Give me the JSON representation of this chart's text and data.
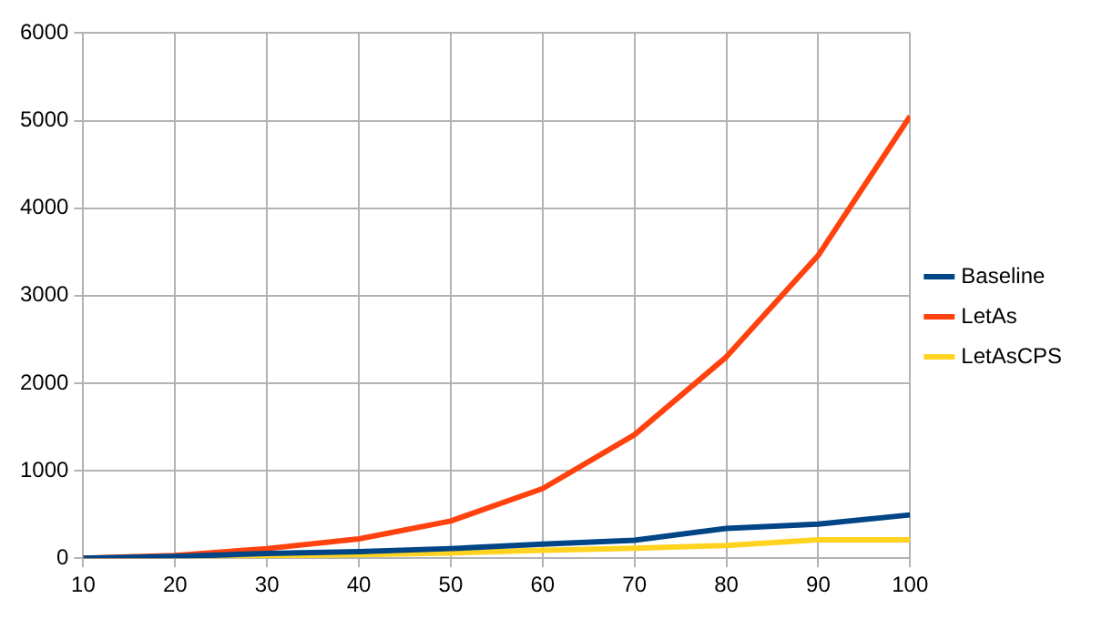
{
  "chart_data": {
    "type": "line",
    "x": [
      10,
      20,
      30,
      40,
      50,
      60,
      70,
      80,
      90,
      100
    ],
    "series": [
      {
        "name": "Baseline",
        "color": "#004586",
        "values": [
          0,
          20,
          55,
          75,
          110,
          160,
          205,
          340,
          390,
          495
        ]
      },
      {
        "name": "LetAs",
        "color": "#ff420e",
        "values": [
          0,
          30,
          110,
          220,
          425,
          795,
          1410,
          2300,
          3460,
          5050
        ]
      },
      {
        "name": "LetAsCPS",
        "color": "#ffd320",
        "values": [
          0,
          7,
          27,
          40,
          60,
          90,
          115,
          145,
          210,
          210
        ]
      }
    ],
    "xlim": [
      10,
      100
    ],
    "xticks": [
      10,
      20,
      30,
      40,
      50,
      60,
      70,
      80,
      90,
      100
    ],
    "ylim": [
      0,
      6000
    ],
    "yticks": [
      0,
      1000,
      2000,
      3000,
      4000,
      5000,
      6000
    ],
    "grid": true,
    "legend": "right",
    "marker": "none",
    "line_style": "solid"
  }
}
